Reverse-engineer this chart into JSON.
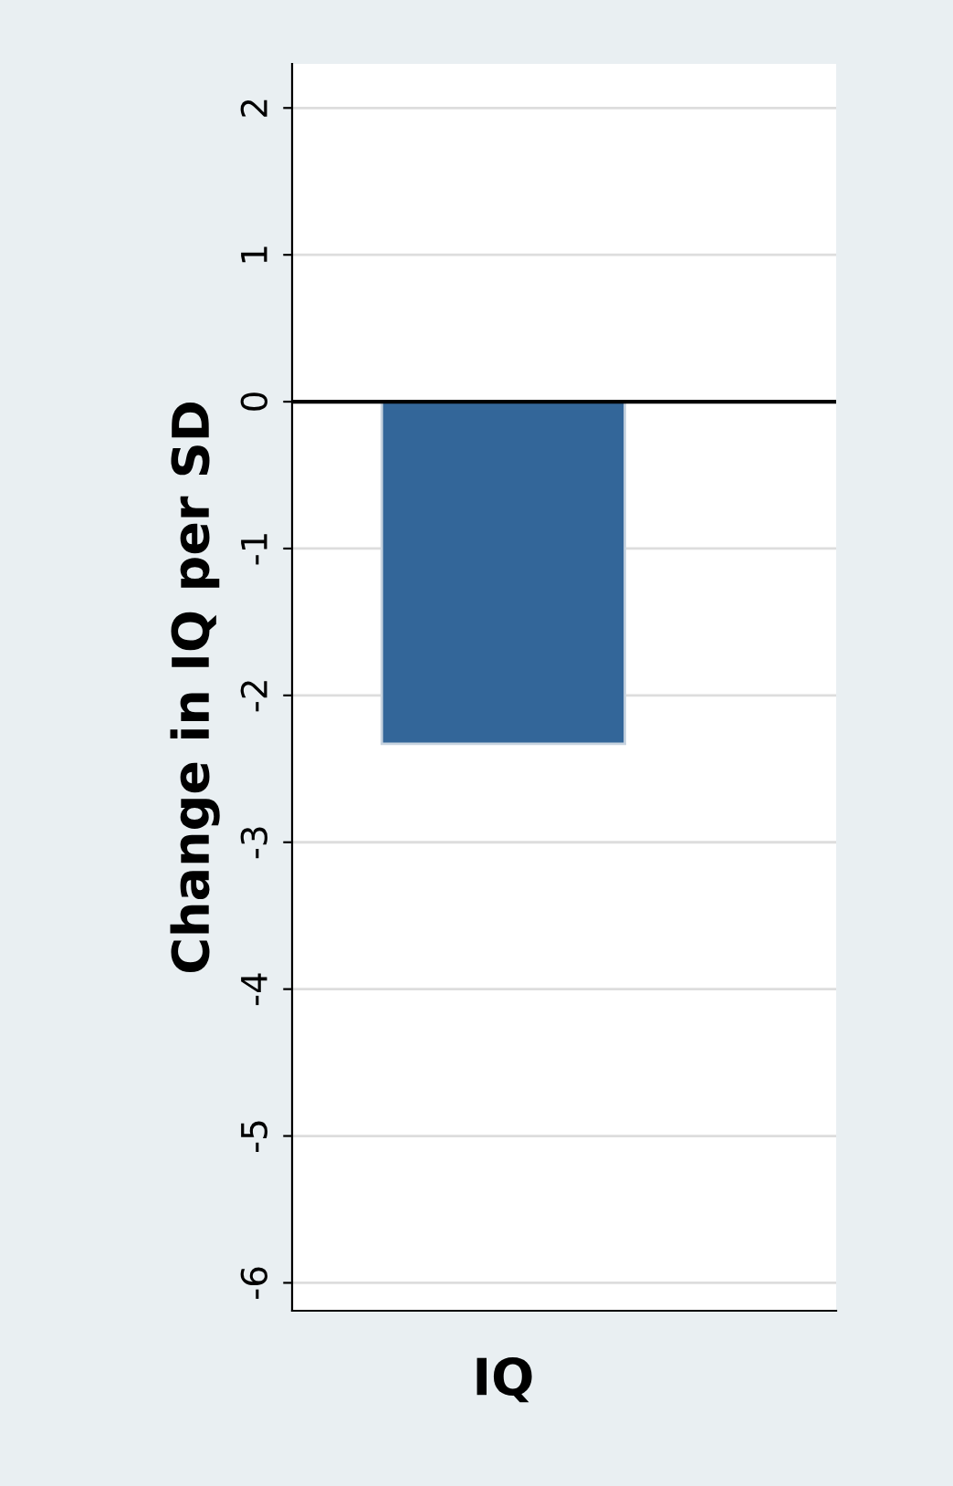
{
  "chart_data": {
    "type": "bar",
    "ylabel": "Change in IQ per SD",
    "categories": [
      "IQ"
    ],
    "values": [
      -2.33
    ],
    "color": "#336699",
    "ylim": [
      -6.19,
      2.3
    ],
    "yticks": [
      -6,
      -5,
      -4,
      -3,
      -2,
      -1,
      0,
      1,
      2
    ],
    "grid": "y",
    "ref_lines": [
      {
        "axis": "y",
        "value": 0,
        "color": "#000000"
      }
    ]
  }
}
